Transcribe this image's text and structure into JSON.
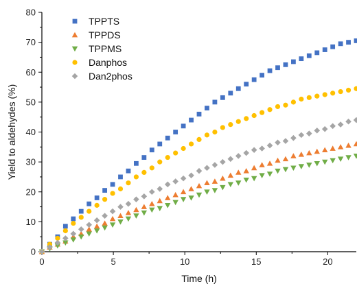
{
  "chart_data": {
    "type": "scatter",
    "xlabel": "Time (h)",
    "ylabel": "Yield to aldehydes (%)",
    "xlim": [
      0,
      22
    ],
    "ylim": [
      0,
      80
    ],
    "xticks": [
      0,
      5,
      10,
      15,
      20
    ],
    "yticks": [
      0,
      10,
      20,
      30,
      40,
      50,
      60,
      70,
      80
    ],
    "x_tick_labels": [
      "0",
      "5",
      "10",
      "15",
      "20"
    ],
    "y_tick_labels": [
      "0",
      "10",
      "20",
      "30",
      "40",
      "50",
      "60",
      "70",
      "80"
    ],
    "grid": false,
    "legend_position": "top-left",
    "x": [
      0,
      0.55,
      1.1,
      1.65,
      2.2,
      2.75,
      3.3,
      3.85,
      4.4,
      4.95,
      5.5,
      6.05,
      6.6,
      7.15,
      7.7,
      8.25,
      8.8,
      9.35,
      9.9,
      10.45,
      11.0,
      11.55,
      12.1,
      12.65,
      13.2,
      13.75,
      14.3,
      14.85,
      15.4,
      15.95,
      16.5,
      17.05,
      17.6,
      18.15,
      18.7,
      19.25,
      19.8,
      20.35,
      20.9,
      21.45,
      22.0
    ],
    "series": [
      {
        "name": "TPPTS",
        "marker": "square",
        "color": "#4472C4",
        "values": [
          0,
          2.5,
          5.0,
          8.5,
          11.0,
          13.5,
          16.0,
          18.0,
          20.5,
          22.5,
          25.0,
          27.0,
          29.5,
          31.5,
          34.0,
          36.0,
          38.0,
          40.0,
          42.0,
          44.0,
          46.0,
          48.0,
          50.0,
          51.5,
          53.0,
          54.5,
          56.0,
          57.5,
          59.0,
          60.5,
          61.5,
          62.5,
          63.5,
          64.5,
          65.5,
          66.5,
          67.5,
          68.5,
          69.5,
          70.0,
          70.5
        ]
      },
      {
        "name": "TPPDS",
        "marker": "triangle-up",
        "color": "#ED7D31",
        "values": [
          0,
          1.5,
          2.5,
          3.5,
          5.0,
          6.0,
          7.5,
          8.5,
          9.5,
          11.0,
          12.0,
          13.0,
          14.0,
          15.0,
          16.0,
          17.0,
          18.0,
          19.0,
          20.0,
          21.0,
          22.0,
          23.0,
          23.5,
          24.5,
          25.5,
          26.5,
          27.0,
          28.0,
          29.0,
          29.5,
          30.5,
          31.0,
          32.0,
          32.5,
          33.0,
          33.5,
          34.0,
          34.5,
          35.0,
          35.5,
          36.0
        ]
      },
      {
        "name": "TPPMS",
        "marker": "triangle-down",
        "color": "#70AD47",
        "values": [
          0,
          1.0,
          2.0,
          3.0,
          4.0,
          5.0,
          6.0,
          7.0,
          8.0,
          9.0,
          10.0,
          11.0,
          12.0,
          13.0,
          14.0,
          14.5,
          15.5,
          16.5,
          17.5,
          18.0,
          19.0,
          20.0,
          20.5,
          21.5,
          22.5,
          23.0,
          24.0,
          24.5,
          25.5,
          26.0,
          27.0,
          27.5,
          28.0,
          28.5,
          29.0,
          29.5,
          30.0,
          30.5,
          31.0,
          31.5,
          32.0
        ]
      },
      {
        "name": "Danphos",
        "marker": "circle",
        "color": "#FFC000",
        "values": [
          0,
          2.5,
          4.5,
          7.0,
          9.5,
          11.5,
          13.5,
          15.5,
          17.5,
          19.5,
          21.0,
          23.0,
          25.0,
          26.5,
          28.0,
          30.0,
          31.5,
          33.0,
          34.5,
          36.0,
          37.5,
          39.0,
          40.0,
          41.5,
          42.5,
          43.5,
          44.5,
          45.5,
          46.5,
          47.5,
          48.5,
          49.0,
          50.0,
          51.0,
          51.5,
          52.0,
          52.5,
          53.0,
          53.5,
          54.0,
          54.5
        ]
      },
      {
        "name": "Dan2phos",
        "marker": "diamond",
        "color": "#A5A5A5",
        "values": [
          0,
          1.5,
          3.0,
          4.5,
          6.0,
          7.5,
          9.0,
          10.5,
          12.0,
          13.5,
          15.0,
          16.0,
          17.5,
          18.5,
          20.0,
          21.0,
          22.5,
          23.5,
          24.5,
          25.5,
          27.0,
          28.0,
          29.0,
          30.0,
          31.0,
          32.0,
          33.0,
          34.0,
          34.5,
          35.5,
          36.5,
          37.0,
          38.0,
          39.0,
          39.5,
          40.5,
          41.0,
          42.0,
          42.5,
          43.5,
          44.0
        ]
      }
    ]
  }
}
